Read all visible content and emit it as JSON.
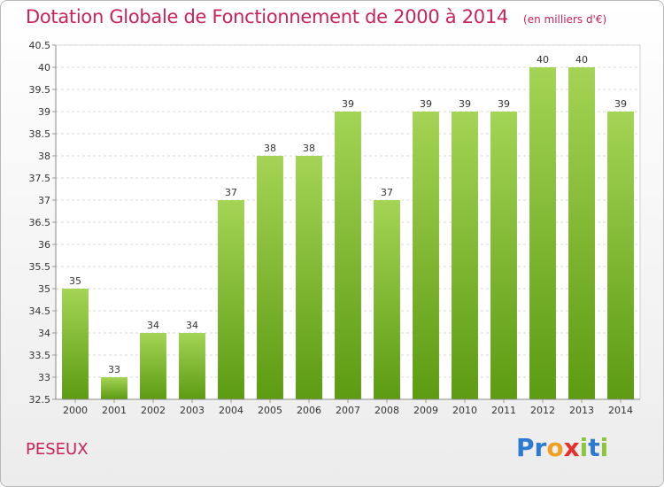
{
  "header": {
    "title": "Dotation Globale de Fonctionnement de 2000 à 2014",
    "subtitle": "(en milliers d'€)"
  },
  "footer": {
    "commune": "PESEUX",
    "logo": [
      "P",
      "r",
      "o",
      "x",
      "i",
      "t",
      "i"
    ]
  },
  "colors": {
    "accent": "#c8235a",
    "bar_top": "#a4d455",
    "bar_bottom": "#5c9b12",
    "grid": "#d8d8d8",
    "logo_letters": [
      "#2a7bd1",
      "#2a7bd1",
      "#f0a020",
      "#e8302a",
      "#8cc63e",
      "#2a7bd1",
      "#8cc63e"
    ]
  },
  "chart_data": {
    "type": "bar",
    "categories": [
      "2000",
      "2001",
      "2002",
      "2003",
      "2004",
      "2005",
      "2006",
      "2007",
      "2008",
      "2009",
      "2010",
      "2011",
      "2012",
      "2013",
      "2014"
    ],
    "values": [
      35,
      33,
      34,
      34,
      37,
      38,
      38,
      39,
      37,
      39,
      39,
      39,
      40,
      40,
      39
    ],
    "data_labels": [
      "35",
      "33",
      "34",
      "34",
      "37",
      "38",
      "38",
      "39",
      "37",
      "39",
      "39",
      "39",
      "40",
      "40",
      "39"
    ],
    "ylim": [
      32.5,
      40.5
    ],
    "yticks": [
      32.5,
      33,
      33.5,
      34,
      34.5,
      35,
      35.5,
      36,
      36.5,
      37,
      37.5,
      38,
      38.5,
      39,
      39.5,
      40,
      40.5
    ],
    "ytick_labels": [
      "32.5",
      "33",
      "33.5",
      "34",
      "34.5",
      "35",
      "35.5",
      "36",
      "36.5",
      "37",
      "37.5",
      "38",
      "38.5",
      "39",
      "39.5",
      "40",
      "40.5"
    ],
    "grid": true,
    "xlabel": "",
    "ylabel": "",
    "title": "Dotation Globale de Fonctionnement de 2000 à 2014",
    "subtitle": "(en milliers d'€)"
  }
}
